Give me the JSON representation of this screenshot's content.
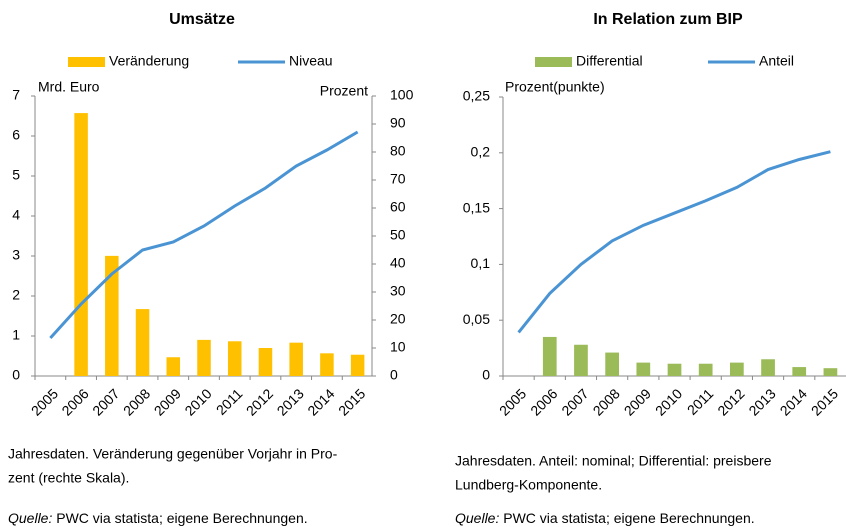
{
  "chart_data": [
    {
      "type": "combo",
      "title": "Umsätze",
      "ylabel": "Mrd. Euro",
      "y2label": "Prozent",
      "categories": [
        "2005",
        "2006",
        "2007",
        "2008",
        "2009",
        "2010",
        "2011",
        "2012",
        "2013",
        "2014",
        "2015"
      ],
      "ylim": [
        0,
        7
      ],
      "yticks": [
        0,
        1,
        2,
        3,
        4,
        5,
        6,
        7
      ],
      "y2lim": [
        0,
        100
      ],
      "y2ticks": [
        0,
        10,
        20,
        30,
        40,
        50,
        60,
        70,
        80,
        90,
        100
      ],
      "series": [
        {
          "name": "Veränderung",
          "type": "bar",
          "axis": "y2",
          "color": "#ffc000",
          "values": [
            null,
            93.9,
            42.9,
            23.9,
            6.7,
            12.9,
            12.4,
            10,
            11.9,
            8.1,
            7.6
          ]
        },
        {
          "name": "Niveau",
          "type": "line",
          "color": "#4a94d4",
          "values": [
            0.95,
            1.8,
            2.55,
            3.15,
            3.35,
            3.75,
            4.25,
            4.7,
            5.25,
            5.65,
            6.1
          ]
        }
      ],
      "caption": [
        "Jahresdaten. Veränderung gegenüber Vorjahr in Pro-",
        "zent (rechte Skala)."
      ],
      "source": {
        "label": "Quelle:",
        "text": " PWC via statista; eigene Berechnungen."
      }
    },
    {
      "type": "combo",
      "title": "In Relation zum BIP",
      "ylabel": "Prozent(punkte)",
      "categories": [
        "2005",
        "2006",
        "2007",
        "2008",
        "2009",
        "2010",
        "2011",
        "2012",
        "2013",
        "2014",
        "2015"
      ],
      "ylim": [
        0,
        0.25
      ],
      "yticks": [
        0,
        {
          "value": 0.05,
          "label": "0,05"
        },
        {
          "value": 0.1,
          "label": "0,1"
        },
        {
          "value": 0.15,
          "label": "0,15"
        },
        {
          "value": 0.2,
          "label": "0,2"
        },
        {
          "value": 0.25,
          "label": "0,25"
        }
      ],
      "series": [
        {
          "name": "Differential",
          "type": "bar",
          "color": "#9bbb59",
          "values": [
            null,
            0.035,
            0.028,
            0.021,
            0.012,
            0.011,
            0.011,
            0.012,
            0.015,
            0.008,
            0.007
          ]
        },
        {
          "name": "Anteil",
          "type": "line",
          "color": "#4a94d4",
          "values": [
            0.039,
            0.074,
            0.1,
            0.121,
            0.135,
            0.146,
            0.157,
            0.169,
            0.185,
            0.194,
            0.201
          ]
        }
      ],
      "caption": [
        "Jahresdaten. Anteil: nominal; Differential: preisbere",
        "Lundberg-Komponente."
      ],
      "source": {
        "label": "Quelle:",
        "text": " PWC via statista; eigene Berechnungen."
      }
    }
  ]
}
